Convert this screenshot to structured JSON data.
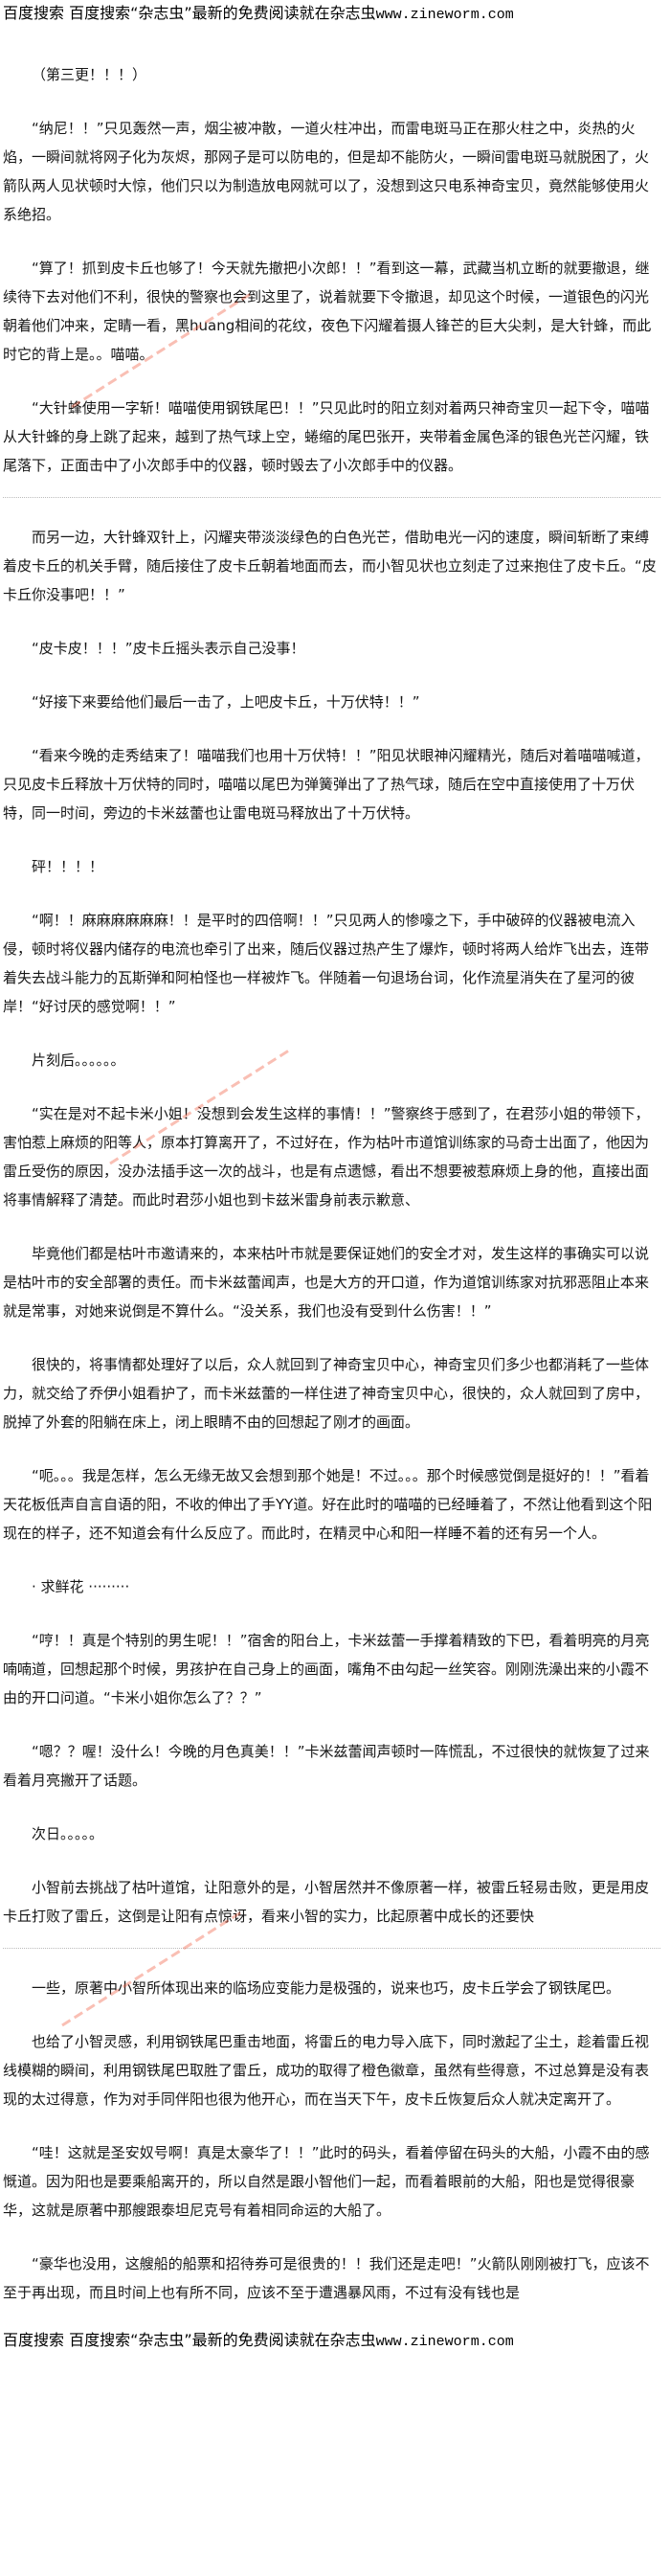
{
  "banner": {
    "text": "百度搜索 百度搜索“杂志虫”最新的免费阅读就在杂志虫",
    "site": "www.zineworm.com"
  },
  "watermark": "杂志虫 www.zineworm.com",
  "watermark_color": "#f04a2a",
  "paragraphs": [
    "（第三更！！！）",
    "“纳尼！！”只见轰然一声，烟尘被冲散，一道火柱冲出，而雷电斑马正在那火柱之中，炎热的火焰，一瞬间就将网子化为灰烬，那网子是可以防电的，但是却不能防火，一瞬间雷电斑马就脱困了，火箭队两人见状顿时大惊，他们只以为制造放电网就可以了，没想到这只电系神奇宝贝，竟然能够使用火系绝招。",
    "“算了！抓到皮卡丘也够了！今天就先撤把小次郎！！”看到这一幕，武藏当机立断的就要撤退，继续待下去对他们不利，很快的警察也会到这里了，说着就要下令撤退，却见这个时候，一道银色的闪光朝着他们冲来，定睛一看，黑huang相间的花纹，夜色下闪耀着摄人锋芒的巨大尖刺，是大针蜂，而此时它的背上是。。喵喵。",
    "“大针蜂使用一字斩！喵喵使用钢铁尾巴！！”只见此时的阳立刻对着两只神奇宝贝一起下令，喵喵从大针蜂的身上跳了起来，越到了热气球上空，蜷缩的尾巴张开，夹带着金属色泽的银色光芒闪耀，铁尾落下，正面击中了小次郎手中的仪器，顿时毁去了小次郎手中的仪器。",
    "而另一边，大针蜂双针上，闪耀夹带淡淡绿色的白色光芒，借助电光一闪的速度，瞬间斩断了束缚着皮卡丘的机关手臂，随后接住了皮卡丘朝着地面而去，而小智见状也立刻走了过来抱住了皮卡丘。“皮卡丘你没事吧！！”",
    "“皮卡皮！！！”皮卡丘摇头表示自己没事！",
    "“好接下来要给他们最后一击了，上吧皮卡丘，十万伏特！！”",
    "“看来今晚的走秀结束了！喵喵我们也用十万伏特！！”阳见状眼神闪耀精光，随后对着喵喵喊道，只见皮卡丘释放十万伏特的同时，喵喵以尾巴为弹簧弹出了了热气球，随后在空中直接使用了十万伏特，同一时间，旁边的卡米兹蕾也让雷电斑马释放出了十万伏特。",
    "砰！！！！",
    "“啊！！麻麻麻麻麻麻！！是平时的四倍啊！！”只见两人的惨嚎之下，手中破碎的仪器被电流入侵，顿时将仪器内储存的电流也牵引了出来，随后仪器过热产生了爆炸，顿时将两人给炸飞出去，连带着失去战斗能力的瓦斯弹和阿柏怪也一样被炸飞。伴随着一句退场台词，化作流星消失在了星河的彼岸！“好讨厌的感觉啊！！”",
    "片刻后。。。。。。",
    "“实在是对不起卡米小姐！没想到会发生这样的事情！！”警察终于感到了，在君莎小姐的带领下，害怕惹上麻烦的阳等人，原本打算离开了，不过好在，作为枯叶市道馆训练家的马奇士出面了，他因为雷丘受伤的原因，没办法插手这一次的战斗，也是有点遗憾，看出不想要被惹麻烦上身的他，直接出面将事情解释了清楚。而此时君莎小姐也到卡兹米雷身前表示歉意、",
    "毕竟他们都是枯叶市邀请来的，本来枯叶市就是要保证她们的安全才对，发生这样的事确实可以说是枯叶市的安全部署的责任。而卡米兹蕾闻声，也是大方的开口道，作为道馆训练家对抗邪恶阻止本来就是常事，对她来说倒是不算什么。“没关系，我们也没有受到什么伤害！！”",
    "很快的，将事情都处理好了以后，众人就回到了神奇宝贝中心，神奇宝贝们多少也都消耗了一些体力，就交给了乔伊小姐看护了，而卡米兹蕾的一样住进了神奇宝贝中心，很快的，众人就回到了房中，脱掉了外套的阳躺在床上，闭上眼睛不由的回想起了刚才的画面。",
    "“呃。。。我是怎样，怎么无缘无故又会想到那个她是！不过。。。那个时候感觉倒是挺好的！！”看着天花板低声自言自语的阳，不收的伸出了手YY道。好在此时的喵喵的已经睡着了，不然让他看到这个阳现在的样子，还不知道会有什么反应了。而此时，在精灵中心和阳一样睡不着的还有另一个人。",
    "· 求鲜花 ·········",
    "“哼！！真是个特别的男生呢！！”宿舍的阳台上，卡米兹蕾一手撑着精致的下巴，看着明亮的月亮喃喃道，回想起那个时候，男孩护在自己身上的画面，嘴角不由勾起一丝笑容。刚刚洗澡出来的小霞不由的开口问道。“卡米小姐你怎么了？？”",
    "“嗯？？喔！没什么！今晚的月色真美！！”卡米兹蕾闻声顿时一阵慌乱，不过很快的就恢复了过来看着月亮撇开了话题。",
    "次日。。。。。",
    "小智前去挑战了枯叶道馆，让阳意外的是，小智居然并不像原著一样，被雷丘轻易击败，更是用皮卡丘打败了雷丘，这倒是让阳有点惊讶，看来小智的实力，比起原著中成长的还要快",
    "一些，原著中小智所体现出来的临场应变能力是极强的，说来也巧，皮卡丘学会了钢铁尾巴。",
    "也给了小智灵感，利用钢铁尾巴重击地面，将雷丘的电力导入底下，同时激起了尘土，趁着雷丘视线模糊的瞬间，利用钢铁尾巴取胜了雷丘，成功的取得了橙色徽章，虽然有些得意，不过总算是没有表现的太过得意，作为对手同伴阳也很为他开心，而在当天下午，皮卡丘恢复后众人就决定离开了。",
    "“哇！这就是圣安奴号啊！真是太豪华了！！”此时的码头，看着停留在码头的大船，小霞不由的感慨道。因为阳也是要乘船离开的，所以自然是跟小智他们一起，而看着眼前的大船，阳也是觉得很豪华，这就是原著中那艘跟泰坦尼克号有着相同命运的大船了。",
    "“豪华也没用，这艘船的船票和招待券可是很贵的！！我们还是走吧！”火箭队刚刚被打飞，应该不至于再出现，而且时间上也有所不同，应该不至于遭遇暴风雨，不过有没有钱也是"
  ]
}
